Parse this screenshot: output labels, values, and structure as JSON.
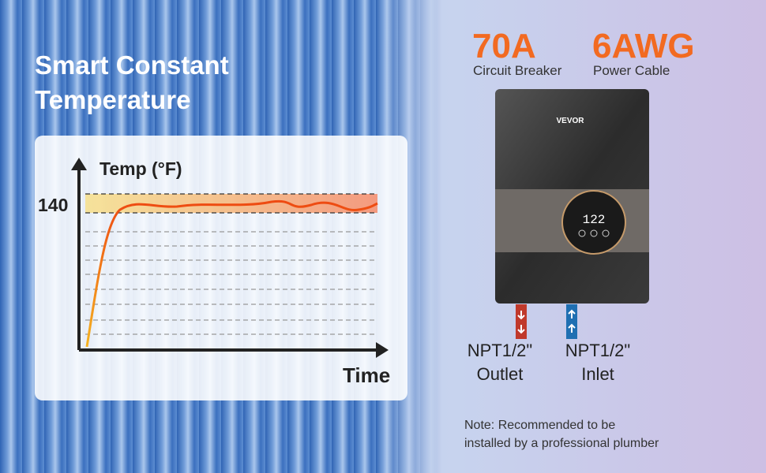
{
  "title_lines": [
    "Smart Constant",
    "Temperature"
  ],
  "graph": {
    "y_axis_label": "Temp (°F)",
    "level_label": "140",
    "x_axis_label": "Time"
  },
  "specs": [
    {
      "value": "70A",
      "label": "Circuit Breaker"
    },
    {
      "value": "6AWG",
      "label": "Power Cable"
    }
  ],
  "device": {
    "brand": "VEVOR",
    "display": "122"
  },
  "ports": [
    {
      "size": "NPT1/2\"",
      "label": "Outlet"
    },
    {
      "size": "NPT1/2\"",
      "label": "Inlet"
    }
  ],
  "note_lines": [
    "Note: Recommended to be",
    "installed by a professional plumber"
  ]
}
